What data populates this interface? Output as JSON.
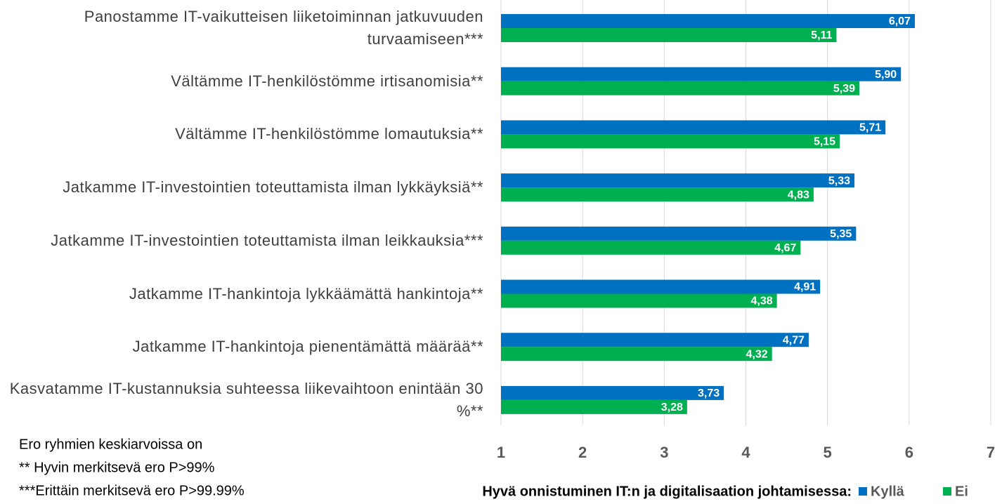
{
  "chart_data": {
    "type": "bar",
    "orientation": "horizontal",
    "categories": [
      "Panostamme IT-vaikutteisen liiketoiminnan jatkuvuuden turvaamiseen***",
      "Vältämme IT-henkilöstömme irtisanomisia**",
      "Vältämme IT-henkilöstömme lomautuksia**",
      "Jatkamme IT-investointien toteuttamista ilman lykkäyksiä**",
      "Jatkamme IT-investointien toteuttamista ilman leikkauksia***",
      "Jatkamme IT-hankintoja lykkäämättä hankintoja**",
      "Jatkamme IT-hankintoja pienentämättä määrää**",
      "Kasvatamme IT-kustannuksia suhteessa liikevaihtoon enintään 30 %**"
    ],
    "series": [
      {
        "name": "Kyllä",
        "color": "#0070c0",
        "values": [
          6.07,
          5.9,
          5.71,
          5.33,
          5.35,
          4.91,
          4.77,
          3.73
        ],
        "value_labels": [
          "6,07",
          "5,90",
          "5,71",
          "5,33",
          "5,35",
          "4,91",
          "4,77",
          "3,73"
        ]
      },
      {
        "name": "Ei",
        "color": "#00b050",
        "values": [
          5.11,
          5.39,
          5.15,
          4.83,
          4.67,
          4.38,
          4.32,
          3.28
        ],
        "value_labels": [
          "5,11",
          "5,39",
          "5,15",
          "4,83",
          "4,67",
          "4,38",
          "4,32",
          "3,28"
        ]
      }
    ],
    "xlim": [
      1,
      7
    ],
    "xticks": [
      1,
      2,
      3,
      4,
      5,
      6,
      7
    ],
    "grid": true,
    "legend_title": "Hyvä onnistuminen IT:n ja digitalisaation johtamisessa:",
    "notes": [
      "Ero ryhmien keskiarvoissa on",
      "**  Hyvin merkitsevä ero P>99%",
      "***Erittäin merkitsevä ero P>99.99%"
    ]
  }
}
